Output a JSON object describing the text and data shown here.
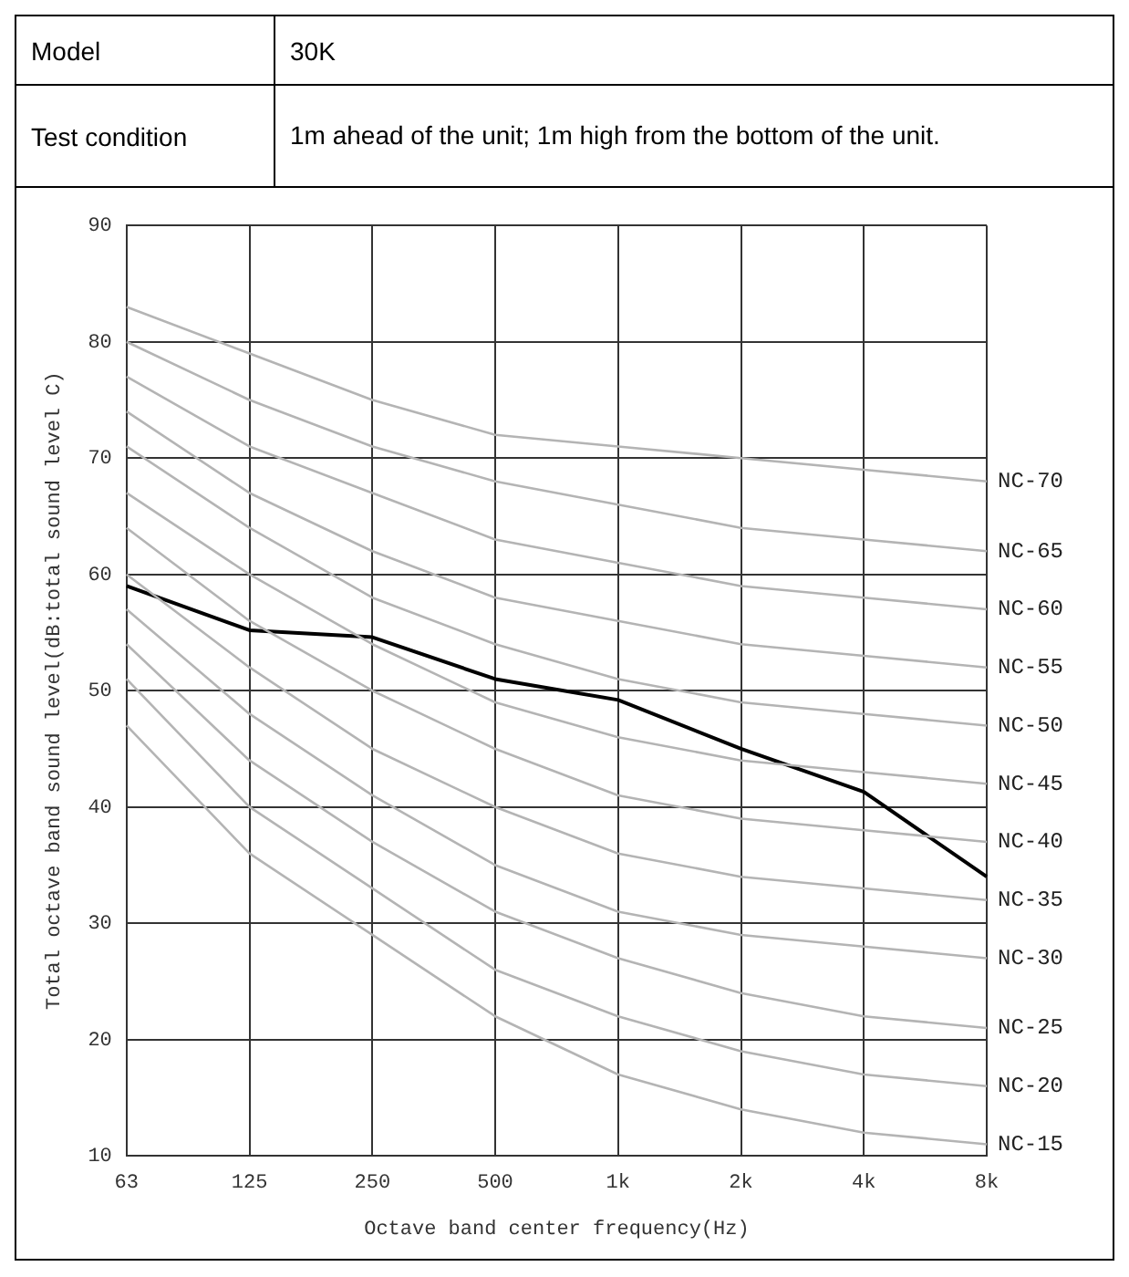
{
  "chart_data": {
    "type": "line",
    "xlabel": "Octave band center frequency(Hz)",
    "ylabel": "Total octave band sound level(dB:total sound level C)",
    "annotations": [
      "Model",
      "30K",
      "Test condition",
      "1m ahead of  the unit; 1m high from the bottom of the unit."
    ],
    "categories": [
      "63",
      "125",
      "250",
      "500",
      "1k",
      "2k",
      "4k",
      "8k"
    ],
    "ylim": [
      10,
      90
    ],
    "yticks": [
      10,
      20,
      30,
      40,
      50,
      60,
      70,
      80,
      90
    ],
    "grid": true,
    "legend": false,
    "marker": "none",
    "line_style": "solid",
    "series": [
      {
        "name": "NC-70",
        "color": "#b4b4b4",
        "values": [
          83,
          79,
          75,
          72,
          71,
          70,
          69,
          68
        ]
      },
      {
        "name": "NC-65",
        "color": "#b4b4b4",
        "values": [
          80,
          75,
          71,
          68,
          66,
          64,
          63,
          62
        ]
      },
      {
        "name": "NC-60",
        "color": "#b4b4b4",
        "values": [
          77,
          71,
          67,
          63,
          61,
          59,
          58,
          57
        ]
      },
      {
        "name": "NC-55",
        "color": "#b4b4b4",
        "values": [
          74,
          67,
          62,
          58,
          56,
          54,
          53,
          52
        ]
      },
      {
        "name": "NC-50",
        "color": "#b4b4b4",
        "values": [
          71,
          64,
          58,
          54,
          51,
          49,
          48,
          47
        ]
      },
      {
        "name": "NC-45",
        "color": "#b4b4b4",
        "values": [
          67,
          60,
          54,
          49,
          46,
          44,
          43,
          42
        ]
      },
      {
        "name": "NC-40",
        "color": "#b4b4b4",
        "values": [
          64,
          56,
          50,
          45,
          41,
          39,
          38,
          37
        ]
      },
      {
        "name": "NC-35",
        "color": "#b4b4b4",
        "values": [
          60,
          52,
          45,
          40,
          36,
          34,
          33,
          32
        ]
      },
      {
        "name": "NC-30",
        "color": "#b4b4b4",
        "values": [
          57,
          48,
          41,
          35,
          31,
          29,
          28,
          27
        ]
      },
      {
        "name": "NC-25",
        "color": "#b4b4b4",
        "values": [
          54,
          44,
          37,
          31,
          27,
          24,
          22,
          21
        ]
      },
      {
        "name": "NC-20",
        "color": "#b4b4b4",
        "values": [
          51,
          40,
          33,
          26,
          22,
          19,
          17,
          16
        ]
      },
      {
        "name": "NC-15",
        "color": "#b4b4b4",
        "values": [
          47,
          36,
          29,
          22,
          17,
          14,
          12,
          11
        ]
      },
      {
        "color": "#000000",
        "values": [
          59,
          55.2,
          54.6,
          51,
          49.2,
          45,
          41.3,
          34
        ]
      }
    ]
  }
}
